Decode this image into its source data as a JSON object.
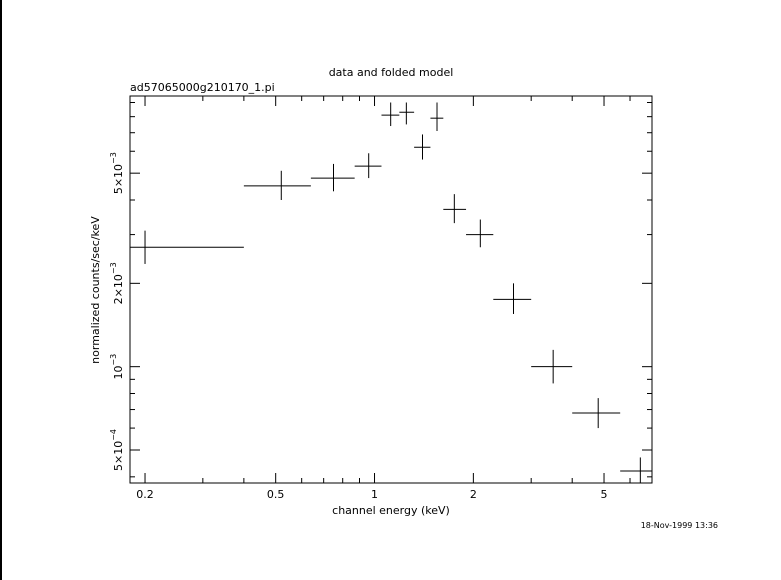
{
  "chart_data": {
    "type": "scatter",
    "title": "data and folded model",
    "subtitle": "ad57065000g210170_1.pi",
    "xlabel": "channel energy (keV)",
    "ylabel": "normalized counts/sec/keV",
    "timestamp": "18-Nov-1999 13:36",
    "x_scale": "log",
    "y_scale": "log",
    "xlim": [
      0.18,
      7.0
    ],
    "ylim": [
      0.00038,
      0.0095
    ],
    "x_ticks": [
      {
        "value": 0.2,
        "label": "0.2"
      },
      {
        "value": 0.5,
        "label": "0.5"
      },
      {
        "value": 1,
        "label": "1"
      },
      {
        "value": 2,
        "label": "2"
      },
      {
        "value": 5,
        "label": "5"
      }
    ],
    "y_ticks": [
      {
        "value": 0.0005,
        "label": "5×10",
        "exp": "−4"
      },
      {
        "value": 0.001,
        "label": "10",
        "exp": "−3"
      },
      {
        "value": 0.002,
        "label": "2×10",
        "exp": "−3"
      },
      {
        "value": 0.005,
        "label": "5×10",
        "exp": "−3"
      }
    ],
    "grid": false,
    "series": [
      {
        "points": [
          {
            "x": 0.2,
            "xlo": 0.18,
            "xhi": 0.4,
            "y": 0.0027,
            "ylo": 0.00235,
            "yhi": 0.0031
          },
          {
            "x": 0.52,
            "xlo": 0.4,
            "xhi": 0.64,
            "y": 0.0045,
            "ylo": 0.004,
            "yhi": 0.0051
          },
          {
            "x": 0.75,
            "xlo": 0.64,
            "xhi": 0.87,
            "y": 0.0048,
            "ylo": 0.0043,
            "yhi": 0.0054
          },
          {
            "x": 0.96,
            "xlo": 0.87,
            "xhi": 1.05,
            "y": 0.0053,
            "ylo": 0.0048,
            "yhi": 0.0059
          },
          {
            "x": 1.12,
            "xlo": 1.05,
            "xhi": 1.19,
            "y": 0.0081,
            "ylo": 0.0074,
            "yhi": 0.009
          },
          {
            "x": 1.25,
            "xlo": 1.19,
            "xhi": 1.32,
            "y": 0.0083,
            "ylo": 0.0075,
            "yhi": 0.009
          },
          {
            "x": 1.4,
            "xlo": 1.32,
            "xhi": 1.48,
            "y": 0.0062,
            "ylo": 0.0056,
            "yhi": 0.0069
          },
          {
            "x": 1.55,
            "xlo": 1.48,
            "xhi": 1.62,
            "y": 0.0079,
            "ylo": 0.0071,
            "yhi": 0.009
          },
          {
            "x": 1.75,
            "xlo": 1.62,
            "xhi": 1.9,
            "y": 0.0037,
            "ylo": 0.0033,
            "yhi": 0.0042
          },
          {
            "x": 2.1,
            "xlo": 1.9,
            "xhi": 2.3,
            "y": 0.003,
            "ylo": 0.0027,
            "yhi": 0.0034
          },
          {
            "x": 2.65,
            "xlo": 2.3,
            "xhi": 3.0,
            "y": 0.00175,
            "ylo": 0.00155,
            "yhi": 0.002
          },
          {
            "x": 3.5,
            "xlo": 3.0,
            "xhi": 4.0,
            "y": 0.001,
            "ylo": 0.00087,
            "yhi": 0.00115
          },
          {
            "x": 4.8,
            "xlo": 4.0,
            "xhi": 5.6,
            "y": 0.00068,
            "ylo": 0.0006,
            "yhi": 0.00077
          },
          {
            "x": 6.45,
            "xlo": 5.6,
            "xhi": 7.0,
            "y": 0.00042,
            "ylo": 0.00038,
            "yhi": 0.00047
          }
        ]
      }
    ]
  }
}
